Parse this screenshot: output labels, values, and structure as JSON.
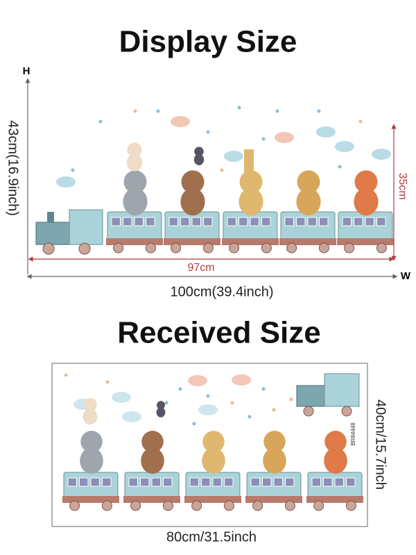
{
  "display": {
    "title": "Display Size",
    "height_axis": "H",
    "height_label": "43cm(16.9inch)",
    "inner_height": "35cm",
    "inner_width": "97cm",
    "width_axis": "W",
    "width_label": "100cm(39.4inch)"
  },
  "received": {
    "title": "Received Size",
    "height_label": "40cm/15.7inch",
    "width_label": "80cm/31.5inch",
    "sheet_code": "BR84448"
  }
}
